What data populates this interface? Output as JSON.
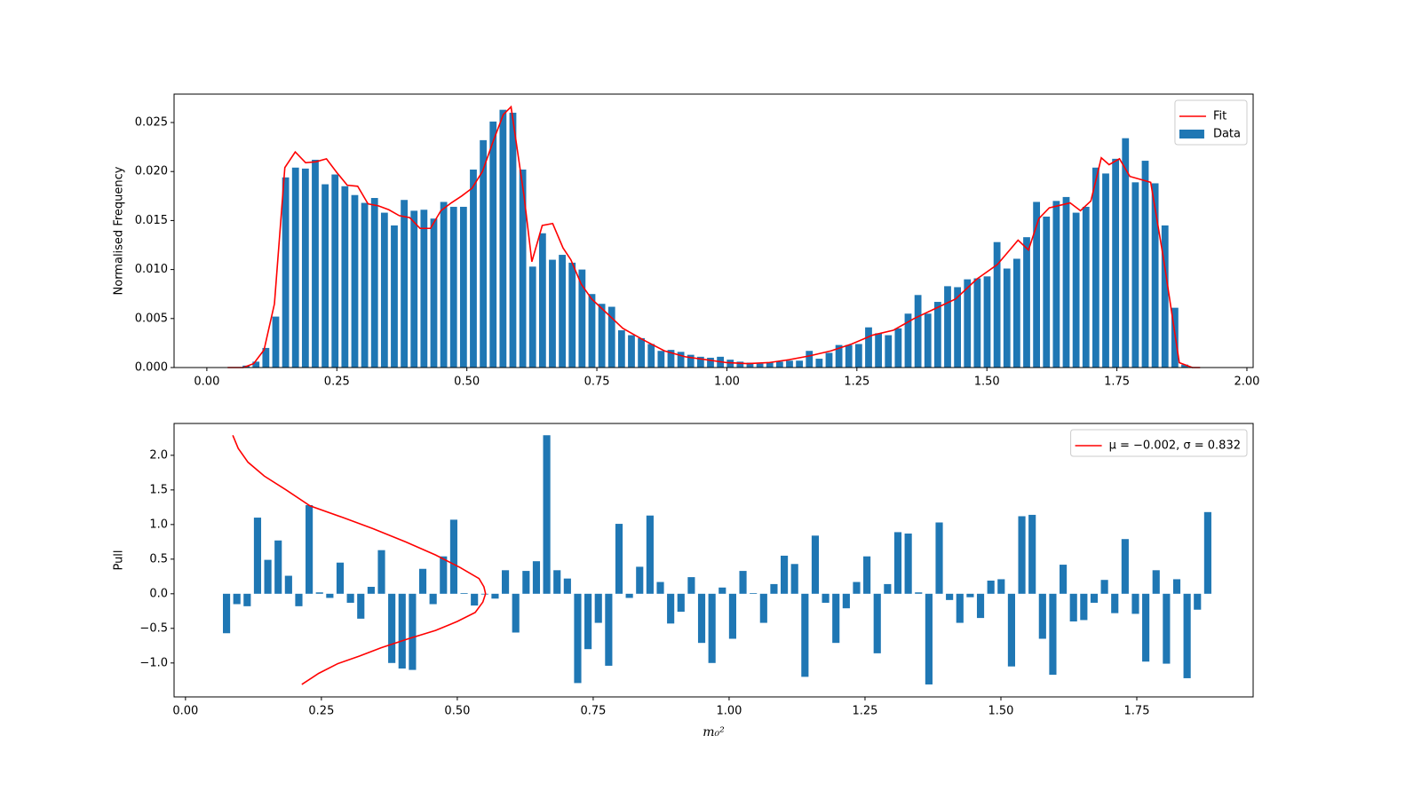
{
  "chart_data": [
    {
      "type": "histogram",
      "name": "Data",
      "color": "#1f77b4",
      "ylabel": "Normalised Frequency",
      "legend": "upper right",
      "bins": [
        0.066,
        0.085,
        0.104,
        0.123,
        0.142,
        0.161,
        0.18,
        0.199,
        0.218,
        0.237,
        0.256,
        0.275,
        0.294,
        0.313,
        0.332,
        0.351,
        0.37,
        0.389,
        0.408,
        0.427,
        0.446,
        0.465,
        0.484,
        0.503,
        0.522,
        0.541,
        0.56,
        0.579,
        0.598,
        0.617,
        0.636,
        0.655,
        0.674,
        0.693,
        0.712,
        0.731,
        0.75,
        0.769,
        0.788,
        0.807,
        0.826,
        0.845,
        0.864,
        0.883,
        0.902,
        0.921,
        0.94,
        0.959,
        0.978,
        0.997,
        1.016,
        1.035,
        1.054,
        1.073,
        1.092,
        1.111,
        1.13,
        1.149,
        1.168,
        1.187,
        1.206,
        1.225,
        1.244,
        1.263,
        1.282,
        1.301,
        1.32,
        1.339,
        1.358,
        1.377,
        1.396,
        1.415,
        1.434,
        1.453,
        1.472,
        1.491,
        1.51,
        1.529,
        1.548,
        1.567,
        1.586,
        1.605,
        1.624,
        1.643,
        1.662,
        1.681,
        1.7,
        1.719,
        1.738,
        1.757,
        1.776,
        1.795,
        1.814,
        1.833,
        1.852,
        1.871,
        1.89
      ],
      "values": [
        0.0002,
        0.0006,
        0.002,
        0.0052,
        0.0194,
        0.0204,
        0.0203,
        0.0212,
        0.0187,
        0.0197,
        0.0185,
        0.0176,
        0.0168,
        0.0173,
        0.0158,
        0.0145,
        0.0171,
        0.016,
        0.0161,
        0.0152,
        0.0169,
        0.0164,
        0.0164,
        0.0202,
        0.0232,
        0.0251,
        0.0263,
        0.026,
        0.0202,
        0.0103,
        0.0137,
        0.011,
        0.0115,
        0.0107,
        0.01,
        0.0075,
        0.0065,
        0.0062,
        0.0038,
        0.0033,
        0.003,
        0.0024,
        0.0017,
        0.0018,
        0.0016,
        0.0013,
        0.0011,
        0.001,
        0.0011,
        0.0008,
        0.0006,
        0.0005,
        0.0004,
        0.0005,
        0.0006,
        0.0007,
        0.0007,
        0.0017,
        0.0009,
        0.0015,
        0.0023,
        0.0023,
        0.0024,
        0.0041,
        0.0035,
        0.0033,
        0.004,
        0.0055,
        0.0074,
        0.0055,
        0.0067,
        0.0083,
        0.0082,
        0.009,
        0.0091,
        0.0093,
        0.0128,
        0.0101,
        0.0111,
        0.0133,
        0.0169,
        0.0154,
        0.017,
        0.0174,
        0.0158,
        0.0164,
        0.0204,
        0.0198,
        0.0213,
        0.0234,
        0.0189,
        0.0211,
        0.0188,
        0.0145,
        0.0061,
        0.0003
      ],
      "lines": [
        {
          "name": "Fit",
          "color": "#ff0000",
          "x": [
            0.04,
            0.07,
            0.09,
            0.11,
            0.13,
            0.15,
            0.17,
            0.19,
            0.21,
            0.23,
            0.25,
            0.27,
            0.29,
            0.31,
            0.33,
            0.35,
            0.37,
            0.39,
            0.41,
            0.43,
            0.45,
            0.47,
            0.49,
            0.51,
            0.53,
            0.55,
            0.57,
            0.585,
            0.61,
            0.625,
            0.645,
            0.665,
            0.685,
            0.7,
            0.72,
            0.74,
            0.76,
            0.78,
            0.8,
            0.84,
            0.88,
            0.92,
            0.96,
            1.0,
            1.04,
            1.08,
            1.12,
            1.16,
            1.2,
            1.24,
            1.28,
            1.32,
            1.36,
            1.4,
            1.44,
            1.48,
            1.52,
            1.56,
            1.58,
            1.6,
            1.62,
            1.66,
            1.68,
            1.7,
            1.72,
            1.735,
            1.755,
            1.775,
            1.815,
            1.84,
            1.87,
            1.895,
            1.91
          ],
          "y": [
            0,
            0,
            0.0004,
            0.0018,
            0.0065,
            0.0204,
            0.022,
            0.0209,
            0.021,
            0.0213,
            0.0199,
            0.0186,
            0.0185,
            0.0167,
            0.0165,
            0.0161,
            0.0155,
            0.0153,
            0.0142,
            0.0142,
            0.016,
            0.0168,
            0.0175,
            0.0183,
            0.02,
            0.023,
            0.0258,
            0.0266,
            0.0175,
            0.0108,
            0.0145,
            0.0147,
            0.0122,
            0.011,
            0.0085,
            0.007,
            0.006,
            0.005,
            0.004,
            0.0028,
            0.0017,
            0.0011,
            0.0008,
            0.0005,
            0.0004,
            0.0005,
            0.0008,
            0.0012,
            0.0017,
            0.0024,
            0.0033,
            0.0038,
            0.005,
            0.006,
            0.007,
            0.009,
            0.0105,
            0.013,
            0.012,
            0.0152,
            0.0163,
            0.0168,
            0.016,
            0.017,
            0.0214,
            0.0207,
            0.0213,
            0.0195,
            0.0189,
            0.011,
            0.0005,
            0,
            0
          ]
        }
      ],
      "xlim": [
        -0.063,
        2.012
      ],
      "ylim": [
        0,
        0.0279
      ],
      "xticks": [
        {
          "value": 0,
          "label": "0.00"
        },
        0.25,
        {
          "value": 0.5,
          "label": "0.50"
        },
        0.75,
        {
          "value": 1,
          "label": "1.00"
        },
        1.25,
        {
          "value": 1.5,
          "label": "1.50"
        },
        1.75,
        {
          "value": 2,
          "label": "2.00"
        }
      ],
      "yticks": [
        {
          "value": 0,
          "label": "0.000"
        },
        0.005,
        {
          "value": 0.01,
          "label": "0.010"
        },
        0.015,
        {
          "value": 0.02,
          "label": "0.020"
        },
        0.025
      ]
    },
    {
      "type": "histogram",
      "color": "#1f77b4",
      "ylabel": "Pull",
      "xlabel": "m₀²",
      "legend": "upper right",
      "bins": [
        0.066,
        0.085,
        0.104,
        0.123,
        0.142,
        0.161,
        0.18,
        0.199,
        0.218,
        0.237,
        0.256,
        0.275,
        0.294,
        0.313,
        0.332,
        0.351,
        0.37,
        0.389,
        0.408,
        0.427,
        0.446,
        0.465,
        0.484,
        0.503,
        0.522,
        0.541,
        0.56,
        0.579,
        0.598,
        0.617,
        0.636,
        0.655,
        0.674,
        0.693,
        0.712,
        0.731,
        0.75,
        0.769,
        0.788,
        0.807,
        0.826,
        0.845,
        0.864,
        0.883,
        0.902,
        0.921,
        0.94,
        0.959,
        0.978,
        0.997,
        1.016,
        1.035,
        1.054,
        1.073,
        1.092,
        1.111,
        1.13,
        1.149,
        1.168,
        1.187,
        1.206,
        1.225,
        1.244,
        1.263,
        1.282,
        1.301,
        1.32,
        1.339,
        1.358,
        1.377,
        1.396,
        1.415,
        1.434,
        1.453,
        1.472,
        1.491,
        1.51,
        1.529,
        1.548,
        1.567,
        1.586,
        1.605,
        1.624,
        1.643,
        1.662,
        1.681,
        1.7,
        1.719,
        1.738,
        1.757,
        1.776,
        1.795,
        1.814,
        1.833,
        1.852,
        1.871,
        1.89
      ],
      "values": [
        -0.57,
        -0.15,
        -0.18,
        1.1,
        0.49,
        0.77,
        0.26,
        -0.18,
        1.28,
        0.02,
        -0.06,
        0.45,
        -0.13,
        -0.36,
        0.1,
        0.63,
        -1.0,
        -1.08,
        -1.1,
        0.36,
        -0.15,
        0.54,
        1.07,
        0.01,
        -0.17,
        -0.01,
        -0.07,
        0.34,
        -0.56,
        0.33,
        0.47,
        2.29,
        0.34,
        0.22,
        -1.29,
        -0.8,
        -0.42,
        -1.04,
        1.01,
        -0.06,
        0.39,
        1.13,
        0.17,
        -0.43,
        -0.26,
        0.24,
        -0.71,
        -1.0,
        0.09,
        -0.65,
        0.33,
        0.01,
        -0.42,
        0.14,
        0.55,
        0.43,
        -1.2,
        0.84,
        -0.13,
        -0.71,
        -0.21,
        0.17,
        0.54,
        -0.86,
        0.14,
        0.89,
        0.87,
        0.02,
        -1.31,
        1.03,
        -0.09,
        -0.42,
        -0.05,
        -0.35,
        0.19,
        0.21,
        -1.05,
        1.12,
        1.14,
        -0.65,
        -1.17,
        0.42,
        -0.4,
        -0.38,
        -0.13,
        0.2,
        -0.28,
        0.79,
        -0.29,
        -0.98,
        0.34,
        -1.01,
        0.21,
        -1.22,
        -0.23,
        1.18
      ],
      "lines": [
        {
          "name": "μ = −0.002, σ = 0.832",
          "color": "#ff0000",
          "x": [
            0.087,
            0.097,
            0.115,
            0.145,
            0.185,
            0.229,
            0.29,
            0.345,
            0.405,
            0.46,
            0.505,
            0.54,
            0.549,
            0.552,
            0.547,
            0.533,
            0.5,
            0.46,
            0.41,
            0.36,
            0.32,
            0.28,
            0.245,
            0.214
          ],
          "y": [
            2.29,
            2.1,
            1.9,
            1.7,
            1.5,
            1.27,
            1.1,
            0.94,
            0.75,
            0.56,
            0.38,
            0.22,
            0.1,
            0,
            -0.12,
            -0.27,
            -0.4,
            -0.53,
            -0.65,
            -0.78,
            -0.9,
            -1.01,
            -1.15,
            -1.31
          ]
        }
      ],
      "xlim": [
        -0.021,
        1.964
      ],
      "ylim": [
        -1.49,
        2.46
      ],
      "xticks": [
        {
          "value": 0,
          "label": "0.00"
        },
        0.25,
        {
          "value": 0.5,
          "label": "0.50"
        },
        0.75,
        {
          "value": 1,
          "label": "1.00"
        },
        1.25,
        {
          "value": 1.5,
          "label": "1.50"
        },
        1.75
      ],
      "yticks": [
        {
          "value": -1,
          "label": "−1.0"
        },
        {
          "value": -0.5,
          "label": "−0.5"
        },
        {
          "value": 0,
          "label": "0.0"
        },
        0.5,
        {
          "value": 1,
          "label": "1.0"
        },
        1.5,
        {
          "value": 2,
          "label": "2.0"
        }
      ]
    }
  ]
}
